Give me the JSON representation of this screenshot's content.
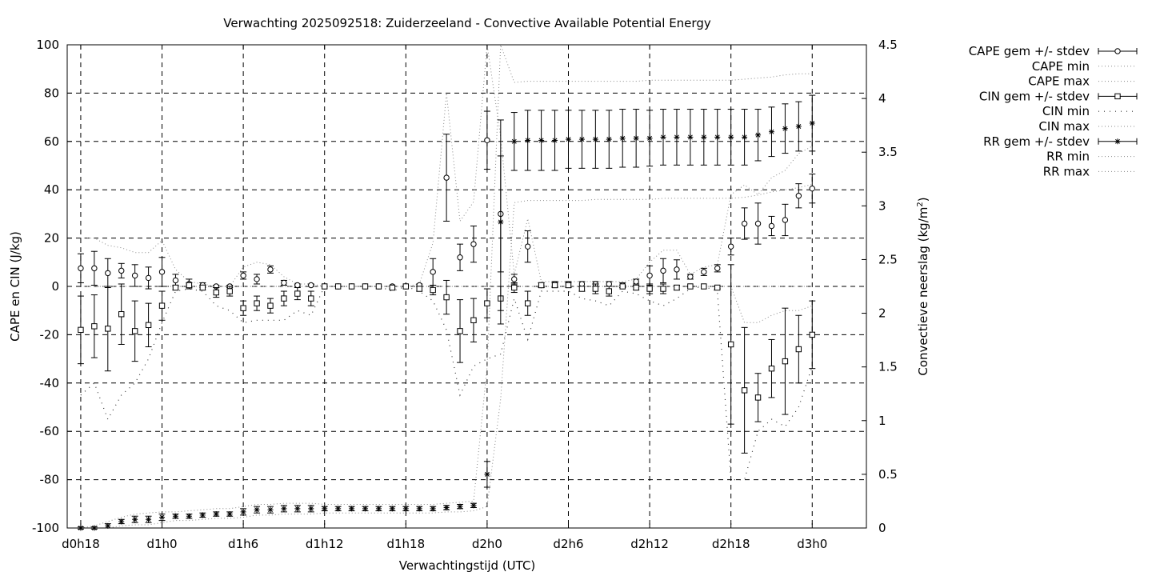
{
  "chart_data": {
    "type": "line",
    "title": "Verwachting 2025092518: Zuiderzeeland - Convective Available Potential Energy",
    "xlabel": "Verwachtingstijd (UTC)",
    "ylabel": "CAPE en CIN (J/kg)",
    "y2label_main": "Convectieve neerslag (kg/m",
    "y2label_sup": "2",
    "y2label_end": ")",
    "x_unit": "forecast hours (lead time from init)",
    "xlim": [
      17,
      76
    ],
    "ylim": [
      -100,
      100
    ],
    "y2lim": [
      0,
      4.5
    ],
    "grid": true,
    "legend_position": "outside-right",
    "x_ticks": [
      {
        "x": 18,
        "label": "d0h18"
      },
      {
        "x": 24,
        "label": "d1h0"
      },
      {
        "x": 30,
        "label": "d1h6"
      },
      {
        "x": 36,
        "label": "d1h12"
      },
      {
        "x": 42,
        "label": "d1h18"
      },
      {
        "x": 48,
        "label": "d2h0"
      },
      {
        "x": 54,
        "label": "d2h6"
      },
      {
        "x": 60,
        "label": "d2h12"
      },
      {
        "x": 66,
        "label": "d2h18"
      },
      {
        "x": 72,
        "label": "d3h0"
      }
    ],
    "y_ticks": [
      {
        "v": -100,
        "label": "-100"
      },
      {
        "v": -80,
        "label": "-80"
      },
      {
        "v": -60,
        "label": "-60"
      },
      {
        "v": -40,
        "label": "-40"
      },
      {
        "v": -20,
        "label": "-20"
      },
      {
        "v": 0,
        "label": "0"
      },
      {
        "v": 20,
        "label": "20"
      },
      {
        "v": 40,
        "label": "40"
      },
      {
        "v": 60,
        "label": "60"
      },
      {
        "v": 80,
        "label": "80"
      },
      {
        "v": 100,
        "label": "100"
      }
    ],
    "y2_ticks": [
      {
        "v": 0,
        "label": "0"
      },
      {
        "v": 0.5,
        "label": "0.5"
      },
      {
        "v": 1,
        "label": "1"
      },
      {
        "v": 1.5,
        "label": "1.5"
      },
      {
        "v": 2,
        "label": "2"
      },
      {
        "v": 2.5,
        "label": "2.5"
      },
      {
        "v": 3,
        "label": "3"
      },
      {
        "v": 3.5,
        "label": "3.5"
      },
      {
        "v": 4,
        "label": "4"
      },
      {
        "v": 4.5,
        "label": "4.5"
      }
    ],
    "legend": [
      {
        "label": "CAPE gem +/- stdev",
        "style": "errorbar",
        "marker": "circle"
      },
      {
        "label": "CAPE min",
        "style": "dotted"
      },
      {
        "label": "CAPE max",
        "style": "dotted"
      },
      {
        "label": "CIN gem +/- stdev",
        "style": "errorbar",
        "marker": "square"
      },
      {
        "label": "CIN min",
        "style": "dotted-sparse"
      },
      {
        "label": "CIN max",
        "style": "dotted"
      },
      {
        "label": "RR gem +/- stdev",
        "style": "errorbar",
        "marker": "star"
      },
      {
        "label": "RR min",
        "style": "dotted"
      },
      {
        "label": "RR max",
        "style": "dotted"
      }
    ],
    "cape": {
      "x": [
        18,
        19,
        20,
        21,
        22,
        23,
        24,
        25,
        26,
        27,
        28,
        29,
        30,
        31,
        32,
        33,
        34,
        35,
        36,
        37,
        38,
        39,
        40,
        41,
        42,
        43,
        44,
        45,
        46,
        47,
        48,
        49,
        50,
        51,
        52,
        53,
        54,
        55,
        56,
        57,
        58,
        59,
        60,
        61,
        62,
        63,
        64,
        65,
        66,
        67,
        68,
        69,
        70,
        71,
        72
      ],
      "mean": [
        7.5,
        7.5,
        5.5,
        6.5,
        4.5,
        3.5,
        6,
        2.5,
        1,
        0.5,
        0,
        0,
        4.5,
        3,
        7,
        1.5,
        0.5,
        0.5,
        0,
        0,
        0,
        0,
        0,
        0,
        0,
        0.5,
        6,
        45,
        12,
        17.5,
        60.5,
        30,
        3,
        16.5,
        0.5,
        1,
        1,
        1,
        1,
        1,
        0.5,
        2,
        4.5,
        6.5,
        7,
        4,
        6,
        7.5,
        16.5,
        26,
        26,
        25,
        27.5,
        37.5,
        40.5
      ],
      "stdev": [
        6,
        7,
        6,
        3,
        4.5,
        4.5,
        6,
        2.5,
        2,
        1,
        0.5,
        0.5,
        1.5,
        2,
        1.5,
        1,
        0.5,
        0.5,
        0,
        0,
        0,
        0,
        0,
        0,
        0,
        0.5,
        5.5,
        18,
        5.5,
        7.5,
        12,
        24,
        2,
        6.5,
        1,
        1,
        1,
        1,
        1,
        1,
        1,
        1,
        4,
        5,
        4,
        1,
        1.5,
        1.5,
        3.5,
        6.5,
        8.5,
        4,
        6.5,
        5,
        6
      ]
    },
    "cape_min_y": [
      0,
      0,
      0,
      0,
      0,
      0,
      0,
      0,
      0,
      0,
      0,
      0,
      0,
      0,
      0,
      0,
      0,
      0,
      0,
      0,
      0,
      0,
      0,
      0,
      0,
      0,
      0,
      0,
      0,
      0,
      0,
      0,
      0,
      0,
      0,
      0,
      0,
      0,
      0,
      0,
      0,
      0,
      0,
      0,
      0,
      0,
      0,
      0,
      0,
      0,
      0,
      0,
      0,
      0,
      0
    ],
    "cape_max_y": [
      20,
      20,
      17,
      16,
      14,
      14,
      19,
      7,
      2,
      1,
      0,
      0,
      8,
      10,
      9,
      4,
      1,
      1,
      0,
      0,
      0,
      0,
      0,
      0,
      0,
      1,
      18,
      80,
      27,
      35,
      100,
      62,
      5,
      28,
      2,
      2,
      2,
      2,
      2,
      2,
      2,
      3,
      10,
      15,
      15,
      5,
      8,
      9,
      38,
      42,
      38,
      45,
      48,
      55,
      58
    ],
    "cin": {
      "x": [
        18,
        19,
        20,
        21,
        22,
        23,
        24,
        25,
        26,
        27,
        28,
        29,
        30,
        31,
        32,
        33,
        34,
        35,
        36,
        37,
        38,
        39,
        40,
        41,
        42,
        43,
        44,
        45,
        46,
        47,
        48,
        49,
        50,
        51,
        52,
        53,
        54,
        55,
        56,
        57,
        58,
        59,
        60,
        61,
        62,
        63,
        64,
        65,
        66,
        67,
        68,
        69,
        70,
        71,
        72
      ],
      "mean": [
        -18,
        -16.5,
        -17.5,
        -11.5,
        -18.5,
        -16,
        -8,
        -0.5,
        0.5,
        -0.5,
        -2.5,
        -2,
        -9,
        -7,
        -8,
        -5,
        -3,
        -5,
        0,
        0,
        0,
        0,
        0,
        -0.5,
        0,
        -1,
        -1.5,
        -4.5,
        -18.5,
        -14,
        -7,
        -5,
        -0.5,
        -7,
        0.5,
        0.5,
        0.5,
        -1,
        -1,
        -2,
        0,
        -0.5,
        -1,
        -1,
        -0.5,
        0,
        0,
        -0.5,
        -24,
        -43,
        -46,
        -34,
        -31,
        -26,
        -20
      ],
      "stdev": [
        14,
        13,
        17.5,
        12.5,
        12.5,
        9,
        6,
        1,
        1,
        1,
        2,
        2,
        3,
        3,
        3,
        3,
        2.5,
        3,
        0,
        0,
        0,
        0,
        0,
        0.5,
        0,
        1,
        2,
        7,
        13,
        9,
        6,
        5,
        2,
        5,
        1,
        1,
        1,
        1,
        2,
        2,
        0.5,
        1,
        2,
        2,
        1,
        0,
        0,
        0.5,
        33,
        26,
        10,
        12,
        22,
        14,
        14
      ]
    },
    "cin_min_y": [
      -45,
      -40,
      -55,
      -45,
      -40,
      -30,
      -15,
      -2,
      -1,
      -2,
      -8,
      -10,
      -15,
      -14,
      -14,
      -14,
      -10,
      -12,
      0,
      0,
      0,
      0,
      0,
      -2,
      0,
      -2,
      -6,
      -18,
      -45,
      -33,
      -30,
      -28,
      -5,
      -22,
      -2,
      -2,
      -2,
      -5,
      -6,
      -8,
      -2,
      -3,
      -6,
      -8,
      -5,
      -1,
      0,
      -2,
      -80,
      -80,
      -60,
      -55,
      -58,
      -50,
      -33
    ],
    "cin_max_y": [
      0,
      0,
      0,
      0,
      0,
      0,
      0,
      0,
      0,
      0,
      0,
      0,
      0,
      0,
      0,
      0,
      0,
      0,
      0,
      0,
      0,
      0,
      0,
      0,
      0,
      0,
      0,
      0,
      0,
      0,
      0,
      0,
      0,
      0,
      0,
      0,
      0,
      0,
      0,
      0,
      0,
      0,
      0,
      0,
      0,
      0,
      0,
      0,
      0,
      -15,
      -15,
      -12,
      -10,
      -10,
      -8
    ],
    "rr": {
      "x": [
        18,
        19,
        20,
        21,
        22,
        23,
        24,
        25,
        26,
        27,
        28,
        29,
        30,
        31,
        32,
        33,
        34,
        35,
        36,
        37,
        38,
        39,
        40,
        41,
        42,
        43,
        44,
        45,
        46,
        47,
        48,
        49,
        50,
        51,
        52,
        53,
        54,
        55,
        56,
        57,
        58,
        59,
        60,
        61,
        62,
        63,
        64,
        65,
        66,
        67,
        68,
        69,
        70,
        71,
        72
      ],
      "mean": [
        0,
        0,
        0.02,
        0.06,
        0.08,
        0.08,
        0.1,
        0.11,
        0.11,
        0.12,
        0.13,
        0.13,
        0.15,
        0.17,
        0.17,
        0.18,
        0.18,
        0.18,
        0.18,
        0.18,
        0.18,
        0.18,
        0.18,
        0.18,
        0.18,
        0.18,
        0.18,
        0.19,
        0.2,
        0.21,
        0.5,
        2.85,
        3.6,
        3.61,
        3.61,
        3.61,
        3.62,
        3.62,
        3.62,
        3.62,
        3.63,
        3.63,
        3.63,
        3.64,
        3.64,
        3.64,
        3.64,
        3.64,
        3.64,
        3.64,
        3.66,
        3.69,
        3.72,
        3.74,
        3.77
      ],
      "stdev": [
        0.01,
        0.01,
        0.02,
        0.02,
        0.03,
        0.03,
        0.03,
        0.02,
        0.02,
        0.02,
        0.02,
        0.02,
        0.03,
        0.03,
        0.03,
        0.03,
        0.03,
        0.03,
        0.02,
        0.02,
        0.02,
        0.02,
        0.02,
        0.02,
        0.02,
        0.02,
        0.02,
        0.02,
        0.02,
        0.02,
        0.12,
        0.95,
        0.27,
        0.28,
        0.28,
        0.28,
        0.27,
        0.27,
        0.27,
        0.27,
        0.27,
        0.27,
        0.26,
        0.26,
        0.26,
        0.26,
        0.26,
        0.26,
        0.26,
        0.26,
        0.24,
        0.23,
        0.23,
        0.23,
        0.26
      ]
    },
    "rr_min_y": [
      0,
      0,
      0,
      0.02,
      0.03,
      0.03,
      0.05,
      0.07,
      0.07,
      0.08,
      0.09,
      0.09,
      0.1,
      0.12,
      0.12,
      0.13,
      0.13,
      0.13,
      0.14,
      0.14,
      0.14,
      0.14,
      0.14,
      0.14,
      0.14,
      0.14,
      0.14,
      0.15,
      0.15,
      0.16,
      0.2,
      1.2,
      3.03,
      3.05,
      3.05,
      3.05,
      3.05,
      3.05,
      3.06,
      3.06,
      3.06,
      3.06,
      3.06,
      3.07,
      3.07,
      3.07,
      3.07,
      3.07,
      3.07,
      3.08,
      3.1,
      3.13,
      3.15,
      3.17,
      3.2
    ],
    "rr_max_y": [
      0,
      0.02,
      0.06,
      0.1,
      0.13,
      0.14,
      0.15,
      0.15,
      0.16,
      0.17,
      0.18,
      0.18,
      0.2,
      0.22,
      0.22,
      0.23,
      0.23,
      0.23,
      0.22,
      0.22,
      0.22,
      0.22,
      0.22,
      0.22,
      0.22,
      0.22,
      0.22,
      0.23,
      0.24,
      0.25,
      1.5,
      4.5,
      4.15,
      4.16,
      4.16,
      4.16,
      4.16,
      4.16,
      4.16,
      4.16,
      4.16,
      4.16,
      4.17,
      4.17,
      4.17,
      4.17,
      4.17,
      4.17,
      4.17,
      4.18,
      4.19,
      4.2,
      4.22,
      4.23,
      4.23
    ]
  }
}
